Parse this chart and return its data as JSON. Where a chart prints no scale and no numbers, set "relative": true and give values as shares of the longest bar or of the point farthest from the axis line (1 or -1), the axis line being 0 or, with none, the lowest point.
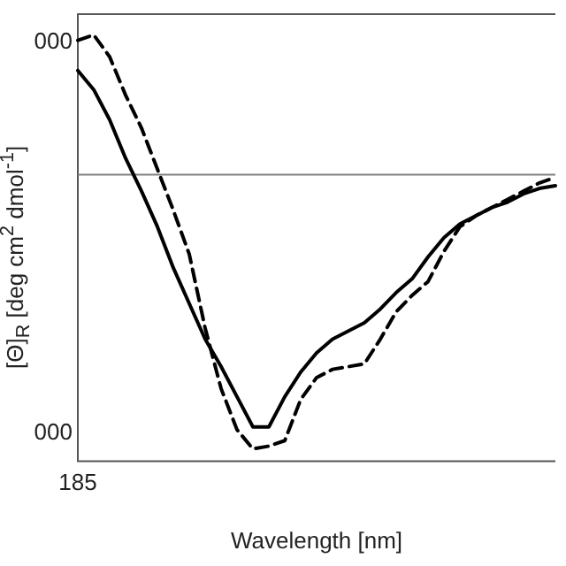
{
  "chart_data": {
    "type": "line",
    "relative": true,
    "xlabel": "Wavelength [nm]",
    "ylabel": "[Θ]$_{R}$ [deg cm$^{2}$ dmol$^{-1}$]",
    "annotations": [
      "000",
      "000",
      "185"
    ],
    "categories": [
      null,
      null,
      null,
      null,
      null,
      null,
      null,
      null,
      null,
      null,
      null,
      null,
      null,
      null,
      null,
      null,
      null,
      null,
      null,
      null,
      null,
      null,
      null,
      null,
      null,
      null,
      null,
      null,
      null,
      null,
      null
    ],
    "legend": false,
    "marker": "none",
    "ref_lines": [
      {
        "axis": "y",
        "value": 0,
        "color": "#808080"
      }
    ],
    "series": [
      {
        "color": "#000000",
        "line_style": "solid",
        "values": [
          0.38,
          0.31,
          0.2,
          0.06,
          -0.06,
          -0.19,
          -0.34,
          -0.47,
          -0.6,
          -0.7,
          -0.81,
          -0.92,
          -0.92,
          -0.81,
          -0.72,
          -0.65,
          -0.6,
          -0.57,
          -0.54,
          -0.49,
          -0.43,
          -0.38,
          -0.3,
          -0.23,
          -0.18,
          -0.15,
          -0.12,
          -0.1,
          -0.07,
          -0.05,
          -0.04
        ]
      },
      {
        "color": "#000000",
        "line_style": "dashed",
        "values": [
          0.49,
          0.51,
          0.43,
          0.29,
          0.17,
          0.02,
          -0.13,
          -0.29,
          -0.56,
          -0.78,
          -0.93,
          -1,
          -0.99,
          -0.97,
          -0.82,
          -0.74,
          -0.71,
          -0.7,
          -0.69,
          -0.6,
          -0.5,
          -0.44,
          -0.39,
          -0.28,
          -0.19,
          -0.15,
          -0.12,
          -0.09,
          -0.06,
          -0.03,
          -0.01
        ]
      }
    ]
  }
}
